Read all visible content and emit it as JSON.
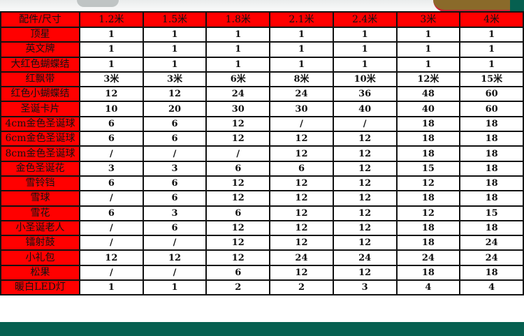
{
  "table": {
    "headers": [
      "配件/尺寸",
      "1.2米",
      "1.5米",
      "1.8米",
      "2.1米",
      "2.4米",
      "3米",
      "4米"
    ],
    "rows": [
      [
        "顶星",
        "1",
        "1",
        "1",
        "1",
        "1",
        "1",
        "1"
      ],
      [
        "英文牌",
        "1",
        "1",
        "1",
        "1",
        "1",
        "1",
        "1"
      ],
      [
        "大红色蝴蝶结",
        "1",
        "1",
        "1",
        "1",
        "1",
        "1",
        "1"
      ],
      [
        "红飘带",
        "3米",
        "3米",
        "6米",
        "8米",
        "10米",
        "12米",
        "15米"
      ],
      [
        "红色小蝴蝶结",
        "12",
        "12",
        "24",
        "24",
        "36",
        "48",
        "60"
      ],
      [
        "圣诞卡片",
        "10",
        "20",
        "30",
        "30",
        "40",
        "40",
        "60"
      ],
      [
        "4cm金色圣诞球",
        "6",
        "6",
        "12",
        "/",
        "/",
        "18",
        "18"
      ],
      [
        "6cm金色圣诞球",
        "6",
        "6",
        "12",
        "12",
        "12",
        "18",
        "18"
      ],
      [
        "8cm金色圣诞球",
        "/",
        "/",
        "/",
        "12",
        "12",
        "18",
        "18"
      ],
      [
        "金色圣诞花",
        "3",
        "3",
        "6",
        "6",
        "12",
        "15",
        "18"
      ],
      [
        "雪铃铛",
        "6",
        "6",
        "12",
        "12",
        "12",
        "12",
        "18"
      ],
      [
        "雪球",
        "/",
        "6",
        "12",
        "12",
        "12",
        "18",
        "18"
      ],
      [
        "雪花",
        "6",
        "3",
        "6",
        "12",
        "12",
        "12",
        "15"
      ],
      [
        "小圣诞老人",
        "/",
        "6",
        "12",
        "12",
        "12",
        "18",
        "18"
      ],
      [
        "镭射鼓",
        "/",
        "/",
        "12",
        "12",
        "12",
        "18",
        "24"
      ],
      [
        "小礼包",
        "12",
        "12",
        "12",
        "24",
        "24",
        "24",
        "24"
      ],
      [
        "松果",
        "/",
        "/",
        "6",
        "12",
        "12",
        "18",
        "18"
      ],
      [
        "暖白LED灯",
        "1",
        "1",
        "2",
        "2",
        "3",
        "4",
        "4"
      ]
    ]
  },
  "colors": {
    "header_bg": "#ff0000",
    "footer_bg": "#066050"
  }
}
